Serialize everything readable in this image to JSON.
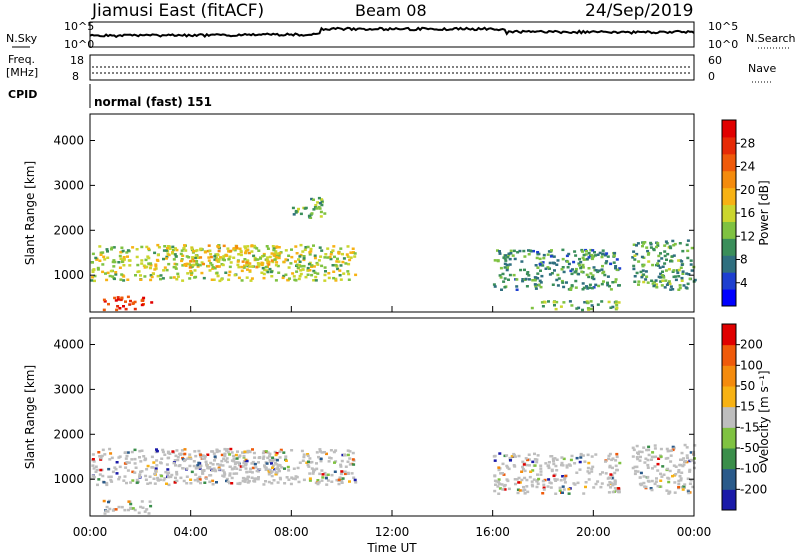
{
  "header": {
    "title": "Jiamusi East (fitACF)",
    "beam": "Beam 08",
    "date": "24/Sep/2019"
  },
  "top_panels": {
    "nsky_label": "N.Sky",
    "nsearch_label": "N.Search",
    "nsky_ticks": [
      "10^5",
      "10^0"
    ],
    "nsearch_ticks": [
      "10^5",
      "10^0"
    ],
    "freq_label": "Freq.",
    "freq_unit": "[MHz]",
    "freq_ticks": [
      "18",
      "8"
    ],
    "nave_label": "Nave",
    "nave_ticks": [
      "60",
      "0"
    ],
    "cpid_label": "CPID",
    "cpid_value": "normal (fast) 151"
  },
  "chart_data": [
    {
      "type": "heatmap",
      "name": "power",
      "ylabel": "Slant Range [km]",
      "yticks": [
        1000,
        2000,
        3000,
        4000
      ],
      "ylim": [
        180,
        4590
      ],
      "xlim": [
        0,
        24
      ],
      "xtick_labels": [
        "00:00",
        "04:00",
        "08:00",
        "12:00",
        "16:00",
        "20:00",
        "00:00"
      ],
      "colorbar": {
        "label": "Power [dB]",
        "range": [
          0,
          32
        ],
        "ticks": [
          4,
          8,
          12,
          16,
          20,
          24,
          28
        ],
        "colors": [
          "#0000ff",
          "#1d3fd0",
          "#2f6f7f",
          "#3a8e5a",
          "#7fc241",
          "#cbd62e",
          "#f7b214",
          "#f48b0d",
          "#ef5a0a",
          "#e62a06",
          "#e00000"
        ]
      },
      "echo_regions": [
        {
          "t": [
            0.0,
            10.5
          ],
          "r": [
            900,
            1700
          ],
          "value": 15
        },
        {
          "t": [
            0.5,
            2.4
          ],
          "r": [
            250,
            550
          ],
          "value": 28
        },
        {
          "t": [
            3.5,
            7.5
          ],
          "r": [
            1200,
            1700
          ],
          "value": 18
        },
        {
          "t": [
            8.0,
            9.3
          ],
          "r": [
            2300,
            2750
          ],
          "value": 12
        },
        {
          "t": [
            16.0,
            21.0
          ],
          "r": [
            700,
            1600
          ],
          "value": 9
        },
        {
          "t": [
            17.5,
            21.0
          ],
          "r": [
            250,
            450
          ],
          "value": 12
        },
        {
          "t": [
            21.5,
            24.0
          ],
          "r": [
            700,
            1800
          ],
          "value": 10
        }
      ]
    },
    {
      "type": "heatmap",
      "name": "velocity",
      "ylabel": "Slant Range [km]",
      "yticks": [
        1000,
        2000,
        3000,
        4000
      ],
      "ylim": [
        180,
        4590
      ],
      "xlim": [
        0,
        24
      ],
      "xtick_labels": [
        "00:00",
        "04:00",
        "08:00",
        "12:00",
        "16:00",
        "20:00",
        "00:00"
      ],
      "xlabel": "Time UT",
      "colorbar": {
        "label": "Velocity [m s⁻¹]",
        "ticks": [
          200,
          100,
          50,
          15,
          -15,
          -50,
          -100,
          -200
        ],
        "colors": [
          "#1a1aa8",
          "#2a5a8a",
          "#3a8e4a",
          "#7fc241",
          "#bebebe",
          "#f7b214",
          "#f48b0d",
          "#ef5a0a",
          "#e00000"
        ]
      },
      "echo_regions": [
        {
          "t": [
            0.0,
            10.5
          ],
          "r": [
            900,
            1700
          ],
          "value": 0
        },
        {
          "t": [
            0.5,
            2.4
          ],
          "r": [
            250,
            550
          ],
          "value": -5
        },
        {
          "t": [
            3.5,
            7.5
          ],
          "r": [
            1200,
            1700
          ],
          "value": 0
        },
        {
          "t": [
            16.0,
            21.0
          ],
          "r": [
            700,
            1600
          ],
          "value": 5
        },
        {
          "t": [
            21.5,
            24.0
          ],
          "r": [
            700,
            1800
          ],
          "value": 0
        }
      ]
    }
  ]
}
